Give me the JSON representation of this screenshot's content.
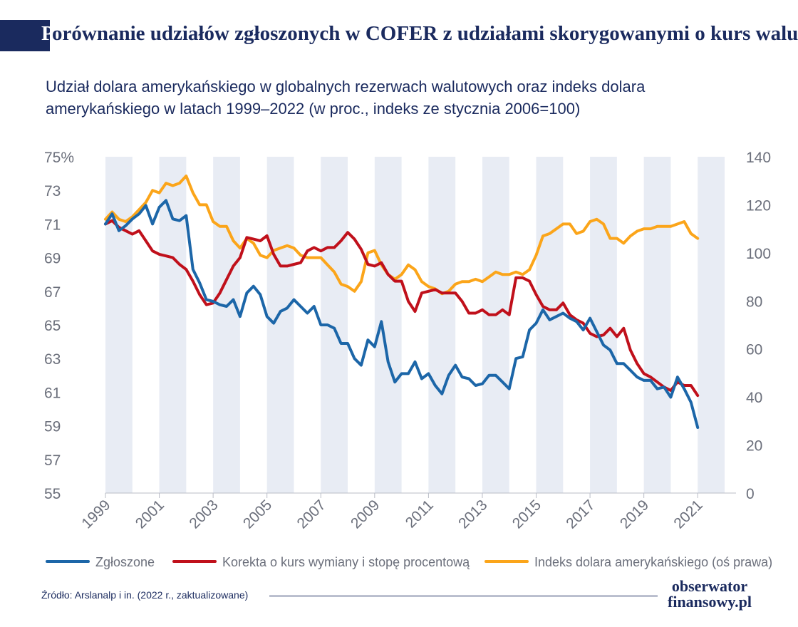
{
  "header": {
    "title_first": "P",
    "title_rest": "orównanie udziałów zgłoszonych w COFER z udziałami skorygowanymi o kurs walut",
    "subtitle": "Udział dolara amerykańskiego w globalnych rezerwach walutowych oraz indeks dolara amerykańskiego w latach 1999–2022 (w proc., indeks ze stycznia 2006=100)"
  },
  "footer": {
    "source": "Źródło: Arslanalp i in. (2022 r., zaktualizowane)",
    "logo_line1": "obserwator",
    "logo_line2": "finansowy.pl"
  },
  "colors": {
    "reported": "#1c66a8",
    "corrected": "#c0101b",
    "index": "#fba51a",
    "band": "#e8ecf4",
    "axis_text": "#6b6f7b",
    "navy": "#1a2a5e"
  },
  "chart_data": {
    "type": "line",
    "y_left": {
      "ticks": [
        "75%",
        "73",
        "71",
        "69",
        "67",
        "65",
        "63",
        "61",
        "59",
        "57",
        "55"
      ],
      "range": [
        55,
        75
      ]
    },
    "y_right": {
      "ticks": [
        "140",
        "120",
        "100",
        "80",
        "60",
        "40",
        "20",
        "0"
      ],
      "range": [
        0,
        140
      ]
    },
    "x_ticks": [
      "1999",
      "2001",
      "2003",
      "2005",
      "2007",
      "2009",
      "2011",
      "2013",
      "2015",
      "2017",
      "2019",
      "2021"
    ],
    "x_range": [
      1999,
      2022
    ],
    "shaded_years": [
      1999,
      2001,
      2003,
      2005,
      2007,
      2009,
      2011,
      2013,
      2015,
      2017,
      2019,
      2021
    ],
    "legend_position": "bottom",
    "series": [
      {
        "name": "Zgłoszone",
        "axis": "left",
        "color_key": "reported",
        "points": [
          [
            1999.0,
            71.0
          ],
          [
            1999.25,
            71.6
          ],
          [
            1999.5,
            70.6
          ],
          [
            1999.75,
            70.9
          ],
          [
            2000.0,
            71.3
          ],
          [
            2000.25,
            71.6
          ],
          [
            2000.5,
            72.1
          ],
          [
            2000.75,
            71.0
          ],
          [
            2001.0,
            72.0
          ],
          [
            2001.25,
            72.4
          ],
          [
            2001.5,
            71.3
          ],
          [
            2001.75,
            71.2
          ],
          [
            2002.0,
            71.5
          ],
          [
            2002.25,
            68.3
          ],
          [
            2002.5,
            67.5
          ],
          [
            2002.75,
            66.5
          ],
          [
            2003.0,
            66.4
          ],
          [
            2003.25,
            66.2
          ],
          [
            2003.5,
            66.1
          ],
          [
            2003.75,
            66.5
          ],
          [
            2004.0,
            65.5
          ],
          [
            2004.25,
            66.9
          ],
          [
            2004.5,
            67.3
          ],
          [
            2004.75,
            66.8
          ],
          [
            2005.0,
            65.5
          ],
          [
            2005.25,
            65.1
          ],
          [
            2005.5,
            65.8
          ],
          [
            2005.75,
            66.0
          ],
          [
            2006.0,
            66.5
          ],
          [
            2006.25,
            66.1
          ],
          [
            2006.5,
            65.7
          ],
          [
            2006.75,
            66.1
          ],
          [
            2007.0,
            65.0
          ],
          [
            2007.25,
            65.0
          ],
          [
            2007.5,
            64.8
          ],
          [
            2007.75,
            63.9
          ],
          [
            2008.0,
            63.9
          ],
          [
            2008.25,
            63.0
          ],
          [
            2008.5,
            62.6
          ],
          [
            2008.75,
            64.1
          ],
          [
            2009.0,
            63.7
          ],
          [
            2009.25,
            65.2
          ],
          [
            2009.5,
            62.8
          ],
          [
            2009.75,
            61.6
          ],
          [
            2010.0,
            62.1
          ],
          [
            2010.25,
            62.1
          ],
          [
            2010.5,
            62.8
          ],
          [
            2010.75,
            61.8
          ],
          [
            2011.0,
            62.1
          ],
          [
            2011.25,
            61.4
          ],
          [
            2011.5,
            60.9
          ],
          [
            2011.75,
            62.0
          ],
          [
            2012.0,
            62.6
          ],
          [
            2012.25,
            61.9
          ],
          [
            2012.5,
            61.8
          ],
          [
            2012.75,
            61.4
          ],
          [
            2013.0,
            61.5
          ],
          [
            2013.25,
            62.0
          ],
          [
            2013.5,
            62.0
          ],
          [
            2013.75,
            61.6
          ],
          [
            2014.0,
            61.2
          ],
          [
            2014.25,
            63.0
          ],
          [
            2014.5,
            63.1
          ],
          [
            2014.75,
            64.7
          ],
          [
            2015.0,
            65.1
          ],
          [
            2015.25,
            65.9
          ],
          [
            2015.5,
            65.3
          ],
          [
            2015.75,
            65.5
          ],
          [
            2016.0,
            65.7
          ],
          [
            2016.25,
            65.4
          ],
          [
            2016.5,
            65.2
          ],
          [
            2016.75,
            64.7
          ],
          [
            2017.0,
            65.4
          ],
          [
            2017.25,
            64.6
          ],
          [
            2017.5,
            63.8
          ],
          [
            2017.75,
            63.5
          ],
          [
            2018.0,
            62.7
          ],
          [
            2018.25,
            62.7
          ],
          [
            2018.5,
            62.3
          ],
          [
            2018.75,
            61.9
          ],
          [
            2019.0,
            61.7
          ],
          [
            2019.25,
            61.7
          ],
          [
            2019.5,
            61.2
          ],
          [
            2019.75,
            61.3
          ],
          [
            2020.0,
            60.7
          ],
          [
            2020.25,
            61.9
          ],
          [
            2020.5,
            61.2
          ],
          [
            2020.75,
            60.4
          ],
          [
            2021.0,
            58.9
          ]
        ]
      },
      {
        "name": "Korekta o kurs wymiany i stopę procentową",
        "axis": "left",
        "color_key": "corrected",
        "points": [
          [
            1999.0,
            71.0
          ],
          [
            1999.25,
            71.2
          ],
          [
            1999.5,
            70.8
          ],
          [
            1999.75,
            70.6
          ],
          [
            2000.0,
            70.4
          ],
          [
            2000.25,
            70.6
          ],
          [
            2000.5,
            70.0
          ],
          [
            2000.75,
            69.4
          ],
          [
            2001.0,
            69.2
          ],
          [
            2001.25,
            69.1
          ],
          [
            2001.5,
            69.0
          ],
          [
            2001.75,
            68.6
          ],
          [
            2002.0,
            68.3
          ],
          [
            2002.25,
            67.6
          ],
          [
            2002.5,
            66.8
          ],
          [
            2002.75,
            66.2
          ],
          [
            2003.0,
            66.3
          ],
          [
            2003.25,
            66.9
          ],
          [
            2003.5,
            67.7
          ],
          [
            2003.75,
            68.5
          ],
          [
            2004.0,
            69.0
          ],
          [
            2004.25,
            70.2
          ],
          [
            2004.5,
            70.1
          ],
          [
            2004.75,
            70.0
          ],
          [
            2005.0,
            70.3
          ],
          [
            2005.25,
            69.2
          ],
          [
            2005.5,
            68.5
          ],
          [
            2005.75,
            68.5
          ],
          [
            2006.0,
            68.6
          ],
          [
            2006.25,
            68.7
          ],
          [
            2006.5,
            69.4
          ],
          [
            2006.75,
            69.6
          ],
          [
            2007.0,
            69.4
          ],
          [
            2007.25,
            69.6
          ],
          [
            2007.5,
            69.6
          ],
          [
            2007.75,
            70.0
          ],
          [
            2008.0,
            70.5
          ],
          [
            2008.25,
            70.1
          ],
          [
            2008.5,
            69.5
          ],
          [
            2008.75,
            68.6
          ],
          [
            2009.0,
            68.5
          ],
          [
            2009.25,
            68.7
          ],
          [
            2009.5,
            68.0
          ],
          [
            2009.75,
            67.6
          ],
          [
            2010.0,
            67.6
          ],
          [
            2010.25,
            66.4
          ],
          [
            2010.5,
            65.8
          ],
          [
            2010.75,
            66.9
          ],
          [
            2011.0,
            67.0
          ],
          [
            2011.25,
            67.1
          ],
          [
            2011.5,
            66.9
          ],
          [
            2011.75,
            66.9
          ],
          [
            2012.0,
            66.9
          ],
          [
            2012.25,
            66.4
          ],
          [
            2012.5,
            65.7
          ],
          [
            2012.75,
            65.7
          ],
          [
            2013.0,
            65.9
          ],
          [
            2013.25,
            65.6
          ],
          [
            2013.5,
            65.6
          ],
          [
            2013.75,
            65.9
          ],
          [
            2014.0,
            65.6
          ],
          [
            2014.25,
            67.8
          ],
          [
            2014.5,
            67.8
          ],
          [
            2014.75,
            67.6
          ],
          [
            2015.0,
            66.8
          ],
          [
            2015.25,
            66.1
          ],
          [
            2015.5,
            65.9
          ],
          [
            2015.75,
            65.9
          ],
          [
            2016.0,
            66.3
          ],
          [
            2016.25,
            65.6
          ],
          [
            2016.5,
            65.3
          ],
          [
            2016.75,
            65.1
          ],
          [
            2017.0,
            64.5
          ],
          [
            2017.25,
            64.3
          ],
          [
            2017.5,
            64.4
          ],
          [
            2017.75,
            64.8
          ],
          [
            2018.0,
            64.3
          ],
          [
            2018.25,
            64.8
          ],
          [
            2018.5,
            63.5
          ],
          [
            2018.75,
            62.7
          ],
          [
            2019.0,
            62.1
          ],
          [
            2019.25,
            61.9
          ],
          [
            2019.5,
            61.6
          ],
          [
            2019.75,
            61.3
          ],
          [
            2020.0,
            61.1
          ],
          [
            2020.25,
            61.6
          ],
          [
            2020.5,
            61.4
          ],
          [
            2020.75,
            61.4
          ],
          [
            2021.0,
            60.8
          ]
        ]
      },
      {
        "name": "Indeks dolara amerykańskiego (oś prawa)",
        "axis": "right",
        "color_key": "index",
        "points": [
          [
            1999.0,
            114
          ],
          [
            1999.25,
            117
          ],
          [
            1999.5,
            114
          ],
          [
            1999.75,
            113
          ],
          [
            2000.0,
            115
          ],
          [
            2000.25,
            118
          ],
          [
            2000.5,
            121
          ],
          [
            2000.75,
            126
          ],
          [
            2001.0,
            125
          ],
          [
            2001.25,
            129
          ],
          [
            2001.5,
            128
          ],
          [
            2001.75,
            129
          ],
          [
            2002.0,
            132
          ],
          [
            2002.25,
            125
          ],
          [
            2002.5,
            120
          ],
          [
            2002.75,
            120
          ],
          [
            2003.0,
            113
          ],
          [
            2003.25,
            111
          ],
          [
            2003.5,
            111
          ],
          [
            2003.75,
            105
          ],
          [
            2004.0,
            102
          ],
          [
            2004.25,
            106
          ],
          [
            2004.5,
            104
          ],
          [
            2004.75,
            99
          ],
          [
            2005.0,
            98
          ],
          [
            2005.25,
            101
          ],
          [
            2005.5,
            102
          ],
          [
            2005.75,
            103
          ],
          [
            2006.0,
            102
          ],
          [
            2006.25,
            99
          ],
          [
            2006.5,
            98
          ],
          [
            2006.75,
            98
          ],
          [
            2007.0,
            98
          ],
          [
            2007.25,
            95
          ],
          [
            2007.5,
            92
          ],
          [
            2007.75,
            87
          ],
          [
            2008.0,
            86
          ],
          [
            2008.25,
            84
          ],
          [
            2008.5,
            88
          ],
          [
            2008.75,
            100
          ],
          [
            2009.0,
            101
          ],
          [
            2009.25,
            95
          ],
          [
            2009.5,
            91
          ],
          [
            2009.75,
            89
          ],
          [
            2010.0,
            91
          ],
          [
            2010.25,
            95
          ],
          [
            2010.5,
            93
          ],
          [
            2010.75,
            88
          ],
          [
            2011.0,
            86
          ],
          [
            2011.25,
            85
          ],
          [
            2011.5,
            83
          ],
          [
            2011.75,
            84
          ],
          [
            2012.0,
            87
          ],
          [
            2012.25,
            88
          ],
          [
            2012.5,
            88
          ],
          [
            2012.75,
            89
          ],
          [
            2013.0,
            88
          ],
          [
            2013.25,
            90
          ],
          [
            2013.5,
            92
          ],
          [
            2013.75,
            91
          ],
          [
            2014.0,
            91
          ],
          [
            2014.25,
            92
          ],
          [
            2014.5,
            91
          ],
          [
            2014.75,
            93
          ],
          [
            2015.0,
            99
          ],
          [
            2015.25,
            107
          ],
          [
            2015.5,
            108
          ],
          [
            2015.75,
            110
          ],
          [
            2016.0,
            112
          ],
          [
            2016.25,
            112
          ],
          [
            2016.5,
            108
          ],
          [
            2016.75,
            109
          ],
          [
            2017.0,
            113
          ],
          [
            2017.25,
            114
          ],
          [
            2017.5,
            112
          ],
          [
            2017.75,
            106
          ],
          [
            2018.0,
            106
          ],
          [
            2018.25,
            104
          ],
          [
            2018.5,
            107
          ],
          [
            2018.75,
            109
          ],
          [
            2019.0,
            110
          ],
          [
            2019.25,
            110
          ],
          [
            2019.5,
            111
          ],
          [
            2019.75,
            111
          ],
          [
            2020.0,
            111
          ],
          [
            2020.25,
            112
          ],
          [
            2020.5,
            113
          ],
          [
            2020.75,
            108
          ],
          [
            2021.0,
            106
          ]
        ]
      }
    ]
  }
}
